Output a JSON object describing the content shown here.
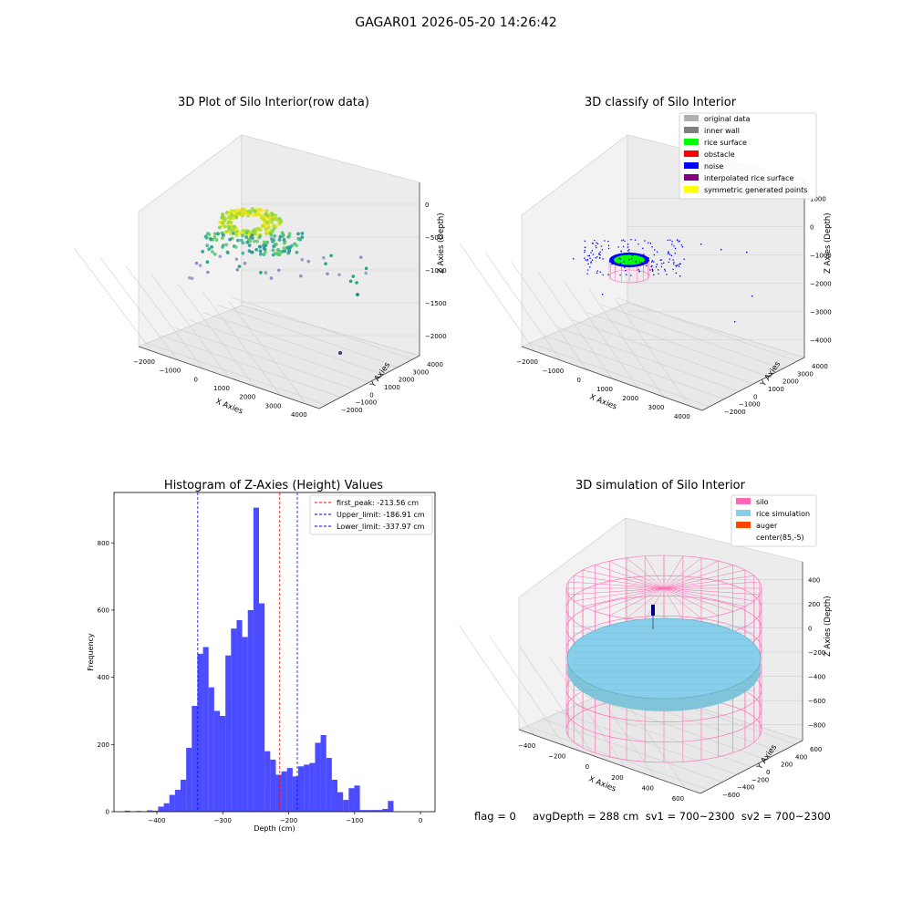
{
  "figure": {
    "suptitle": "GAGAR01 2026-05-20 14:26:42",
    "status_line": "flag = 0     avgDepth = 288 cm  sv1 = 700~2300  sv2 = 700~2300"
  },
  "panels": {
    "raw": {
      "title": "3D Plot of Silo Interior(row data)",
      "xlabel": "X Axies",
      "ylabel": "Y Axies",
      "zlabel": "Z Axies (Depth)",
      "x_ticks": [
        "−2000",
        "−1000",
        "0",
        "1000",
        "2000",
        "3000",
        "4000"
      ],
      "y_ticks": [
        "−2000",
        "−1000",
        "0",
        "1000",
        "2000",
        "3000",
        "4000"
      ],
      "z_ticks": [
        "0",
        "−500",
        "−1000",
        "−1500",
        "−2000"
      ]
    },
    "classify": {
      "title": "3D classify of Silo Interior",
      "xlabel": "X Axies",
      "ylabel": "Y Axies",
      "zlabel": "Z Axies (Depth)",
      "x_ticks": [
        "−2000",
        "−1000",
        "0",
        "1000",
        "2000",
        "3000",
        "4000"
      ],
      "y_ticks": [
        "−2000",
        "−1000",
        "0",
        "1000",
        "2000",
        "3000",
        "4000"
      ],
      "z_ticks": [
        "1000",
        "0",
        "−1000",
        "−2000",
        "−3000",
        "−4000"
      ],
      "legend": [
        {
          "label": "original data",
          "color": "#b0b0b0"
        },
        {
          "label": "inner wall",
          "color": "#808080"
        },
        {
          "label": "rice surface",
          "color": "#00ff00"
        },
        {
          "label": "obstacle",
          "color": "#ff0000"
        },
        {
          "label": "noise",
          "color": "#0000ff"
        },
        {
          "label": "interpolated rice surface",
          "color": "#800080"
        },
        {
          "label": "symmetric generated points",
          "color": "#ffff00"
        }
      ]
    },
    "simulation": {
      "title": "3D simulation of Silo Interior",
      "xlabel": "X Axies",
      "ylabel": "Y Axies",
      "zlabel": "Z Axies (Depth)",
      "x_ticks": [
        "−400",
        "−200",
        "0",
        "200",
        "400",
        "600"
      ],
      "y_ticks": [
        "−600",
        "−400",
        "−200",
        "0",
        "200",
        "400",
        "600"
      ],
      "z_ticks": [
        "400",
        "200",
        "0",
        "−200",
        "−400",
        "−600",
        "−800"
      ],
      "legend": [
        {
          "label": "silo",
          "color": "#ff69b4"
        },
        {
          "label": "rice simulation",
          "color": "#87ceeb"
        },
        {
          "label": "auger",
          "color": "#ff4500"
        },
        {
          "label": "center(85,-5)",
          "color": "none"
        }
      ]
    }
  },
  "chart_data": [
    {
      "type": "bar",
      "title": "Histogram of Z-Axies (Height) Values",
      "xlabel": "Depth (cm)",
      "ylabel": "Frequency",
      "xlim": [
        -465,
        22
      ],
      "ylim": [
        0,
        950
      ],
      "x_ticks": [
        -400,
        -300,
        -200,
        -100,
        0
      ],
      "x_tick_labels": [
        "−400",
        "−300",
        "−200",
        "−100",
        "0"
      ],
      "y_ticks": [
        0,
        200,
        400,
        600,
        800
      ],
      "bar_color": "#0000ff",
      "bin_width": 8.5,
      "bin_start": -449,
      "values": [
        3,
        0,
        2,
        1,
        4,
        3,
        15,
        25,
        50,
        65,
        95,
        190,
        315,
        470,
        490,
        370,
        300,
        285,
        465,
        545,
        570,
        520,
        600,
        905,
        620,
        180,
        155,
        110,
        120,
        130,
        105,
        135,
        140,
        145,
        205,
        228,
        160,
        95,
        58,
        35,
        70,
        78,
        5,
        5,
        5,
        5,
        8,
        32
      ],
      "vlines": [
        {
          "x": -213.56,
          "label": "first_peak: -213.56 cm",
          "color": "#ff0000"
        },
        {
          "x": -186.91,
          "label": "Upper_limit: -186.91 cm",
          "color": "#0000ff"
        },
        {
          "x": -337.97,
          "label": "Lower_limit: -337.97 cm",
          "color": "#0000ff"
        }
      ],
      "legend_position": "top-right",
      "grid": false
    }
  ]
}
